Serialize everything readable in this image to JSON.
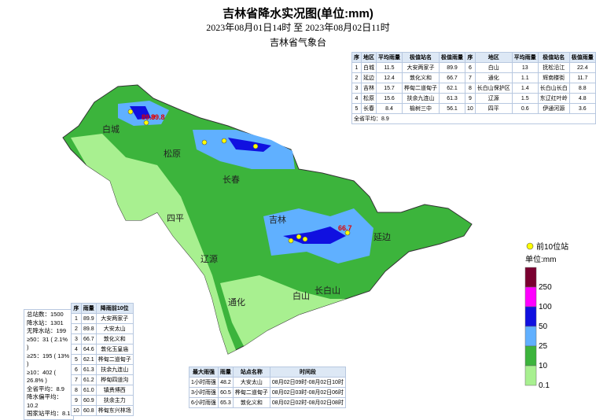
{
  "header": {
    "title": "吉林省降水实况图(单位:mm)",
    "subtitle": "2023年08月01日14时 至 2023年08月02日11时",
    "org": "吉林省气象台"
  },
  "region_table": {
    "columns": [
      "序",
      "地区",
      "平均雨量",
      "极值站名",
      "极值雨量",
      "序",
      "地区",
      "平均雨量",
      "极值站名",
      "极值雨量"
    ],
    "rows": [
      [
        "1",
        "白城",
        "11.5",
        "大安两家子",
        "89.9",
        "6",
        "白山",
        "13",
        "抚松沿江",
        "22.4"
      ],
      [
        "2",
        "延边",
        "12.4",
        "敦化义和",
        "66.7",
        "7",
        "通化",
        "1.1",
        "辉南楼街",
        "11.7"
      ],
      [
        "3",
        "吉林",
        "15.7",
        "桦甸二道甸子",
        "62.1",
        "8",
        "长白山保护区",
        "1.4",
        "长白山长白",
        "8.8"
      ],
      [
        "4",
        "松原",
        "15.6",
        "扶余九连山",
        "61.3",
        "9",
        "辽源",
        "1.5",
        "东辽红叶岭",
        "4.8"
      ],
      [
        "5",
        "长春",
        "8.4",
        "榆树三中",
        "56.1",
        "10",
        "四平",
        "0.6",
        "伊通河源",
        "3.6"
      ]
    ],
    "footer": "全省平均：8.9"
  },
  "map": {
    "labels": [
      "白城",
      "松原",
      "长春",
      "四平",
      "吉林",
      "辽源",
      "延边",
      "通化",
      "白山",
      "长白山"
    ],
    "station_labels": [
      "89.9",
      "89.8",
      "66.7"
    ]
  },
  "legend": {
    "station": "前10位站",
    "unit": "单位:mm",
    "levels": [
      "250",
      "100",
      "50",
      "25",
      "10",
      "0.1"
    ]
  },
  "stats": [
    "总站数：1500",
    "降水站：1301",
    "无降水站：199",
    "≥50：31 ( 2.1% )",
    "≥25：195 ( 13% )",
    "≥10：402 ( 26.8% )",
    "全省平均：8.9",
    "降水偏平均：10.2",
    "国家站平均：8.1"
  ],
  "top10_table": {
    "columns": [
      "序",
      "雨量",
      "降雨前10位"
    ],
    "rows": [
      [
        "1",
        "89.9",
        "大安两家子"
      ],
      [
        "2",
        "89.8",
        "大安太山"
      ],
      [
        "3",
        "66.7",
        "敦化义和"
      ],
      [
        "4",
        "64.6",
        "敦化玉皇庙"
      ],
      [
        "5",
        "62.1",
        "桦甸二道甸子"
      ],
      [
        "6",
        "61.3",
        "扶余九连山"
      ],
      [
        "7",
        "61.2",
        "桦甸四道沟"
      ],
      [
        "8",
        "61.0",
        "镇赉博西"
      ],
      [
        "9",
        "60.9",
        "扶余主力"
      ],
      [
        "10",
        "60.8",
        "桦甸东兴林场"
      ]
    ]
  },
  "intensity_table": {
    "columns": [
      "最大雨强",
      "雨量",
      "站点名称",
      "时间段"
    ],
    "rows": [
      [
        "1小时雨强",
        "48.2",
        "大安太山",
        "08月02日09时-08月02日10时"
      ],
      [
        "3小时雨强",
        "60.5",
        "桦甸二道甸子",
        "08月02日03时-08月02日06时"
      ],
      [
        "6小时雨强",
        "65.3",
        "敦化义和",
        "08月02日02时-08月02日08时"
      ]
    ]
  }
}
